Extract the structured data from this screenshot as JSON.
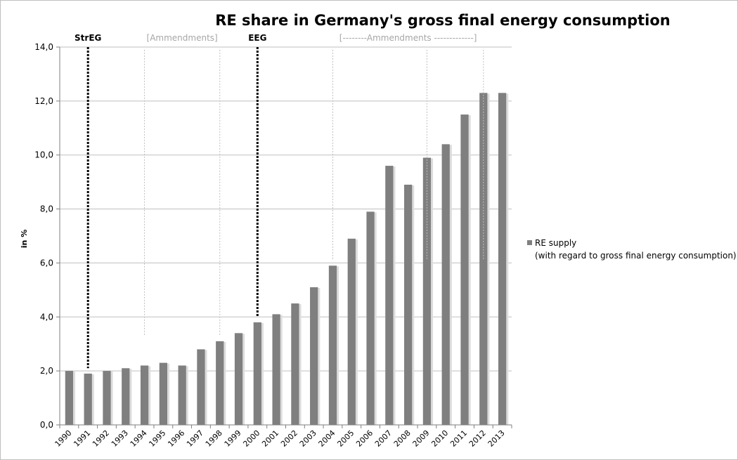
{
  "chart_data": {
    "type": "bar",
    "title": "RE share in Germany's gross final energy consumption",
    "xlabel": "",
    "ylabel": "in %",
    "ylim": [
      0,
      14
    ],
    "yticks": [
      "0,0",
      "2,0",
      "4,0",
      "6,0",
      "8,0",
      "10,0",
      "12,0",
      "14,0"
    ],
    "grid": "horizontal",
    "legend_position": "right",
    "categories": [
      "1990",
      "1991",
      "1992",
      "1993",
      "1994",
      "1995",
      "1996",
      "1997",
      "1998",
      "1999",
      "2000",
      "2001",
      "2002",
      "2003",
      "2004",
      "2005",
      "2006",
      "2007",
      "2008",
      "2009",
      "2010",
      "2011",
      "2012",
      "2013"
    ],
    "series": [
      {
        "name": "RE supply",
        "name_line2": "(with regard to gross final energy consumption)",
        "color": "#7f7f7f",
        "values": [
          2.0,
          1.9,
          2.0,
          2.1,
          2.2,
          2.3,
          2.2,
          2.8,
          3.1,
          3.4,
          3.8,
          4.1,
          4.5,
          5.1,
          5.9,
          6.9,
          7.9,
          9.6,
          8.9,
          9.9,
          10.4,
          11.5,
          12.3,
          12.3
        ]
      }
    ],
    "annotations": [
      {
        "text": "StrEG",
        "style": "black",
        "line_years": [
          "1991"
        ],
        "line_top": 14.0,
        "line_bottom": 2.1
      },
      {
        "text": "[Ammendments]",
        "style": "grey",
        "line_years": [
          "1994",
          "1998"
        ],
        "line_top": 13.9,
        "line_bottom": 3.3
      },
      {
        "text": "EEG",
        "style": "black",
        "line_years": [
          "2000"
        ],
        "line_top": 14.0,
        "line_bottom": 4.0
      },
      {
        "text": "[--------Ammendments -------------]",
        "style": "grey",
        "line_years": [
          "2004",
          "2009",
          "2012"
        ],
        "line_top": 13.9,
        "line_bottom": 6.1
      }
    ]
  }
}
